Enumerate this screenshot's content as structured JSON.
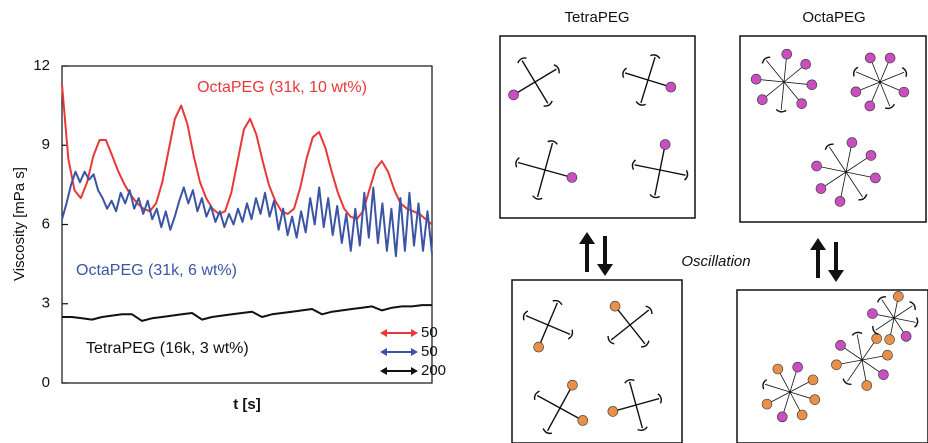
{
  "chart_data": {
    "type": "line",
    "ylabel": "Viscosity [mPa s]",
    "xlabel": "t [s]",
    "ylim": [
      0,
      12
    ],
    "yticks": [
      0,
      3,
      6,
      9,
      12
    ],
    "series": [
      {
        "name": "OctaPEG (31k, 10 wt%)",
        "color": "#e8383a",
        "values": [
          11.3,
          8.5,
          7.3,
          7.0,
          7.6,
          8.6,
          9.2,
          9.2,
          8.6,
          8.0,
          7.5,
          7.1,
          6.8,
          6.6,
          6.5,
          6.8,
          7.6,
          8.8,
          10.0,
          10.5,
          9.8,
          8.6,
          7.6,
          7.0,
          6.6,
          6.4,
          6.5,
          7.2,
          8.4,
          9.6,
          10.0,
          9.4,
          8.4,
          7.5,
          6.9,
          6.5,
          6.4,
          6.6,
          7.4,
          8.5,
          9.3,
          9.5,
          8.9,
          8.0,
          7.2,
          6.6,
          6.3,
          6.2,
          6.5,
          7.3,
          8.1,
          8.4,
          8.0,
          7.3,
          6.8,
          6.6,
          6.5,
          6.4,
          6.2,
          6.0
        ]
      },
      {
        "name": "OctaPEG (31k, 6 wt%)",
        "color": "#3b55a4",
        "values": [
          6.2,
          6.8,
          7.5,
          8.0,
          7.6,
          8.0,
          7.7,
          7.9,
          7.3,
          7.0,
          6.6,
          6.9,
          6.5,
          7.2,
          6.8,
          7.3,
          6.6,
          7.0,
          6.4,
          6.9,
          6.2,
          6.6,
          5.9,
          6.5,
          5.8,
          6.3,
          6.9,
          7.4,
          6.8,
          7.3,
          6.5,
          7.0,
          6.3,
          6.7,
          6.1,
          6.5,
          5.9,
          6.4,
          6.0,
          6.6,
          6.1,
          6.8,
          6.2,
          7.0,
          6.4,
          7.2,
          6.3,
          6.9,
          5.8,
          6.6,
          5.6,
          6.3,
          5.5,
          6.5,
          5.7,
          7.0,
          6.0,
          7.4,
          5.9,
          7.0,
          5.6,
          6.7,
          5.3,
          6.4,
          5.0,
          6.6,
          5.2,
          7.2,
          5.5,
          7.4,
          5.3,
          6.8,
          5.0,
          6.6,
          4.8,
          7.0,
          5.0,
          7.2,
          5.2,
          6.8,
          5.0,
          6.5,
          4.9
        ]
      },
      {
        "name": "TetraPEG (16k, 3 wt%)",
        "color": "#111111",
        "values": [
          2.5,
          2.5,
          2.45,
          2.4,
          2.5,
          2.55,
          2.6,
          2.6,
          2.35,
          2.45,
          2.5,
          2.55,
          2.6,
          2.65,
          2.4,
          2.5,
          2.55,
          2.6,
          2.65,
          2.7,
          2.5,
          2.6,
          2.65,
          2.7,
          2.75,
          2.8,
          2.6,
          2.7,
          2.75,
          2.8,
          2.85,
          2.9,
          2.75,
          2.85,
          2.9,
          2.9,
          2.95,
          2.95
        ]
      }
    ],
    "scale_bars": [
      {
        "color": "#e8383a",
        "value": 50
      },
      {
        "color": "#3b55a4",
        "value": 50
      },
      {
        "color": "#111111",
        "value": 200
      }
    ]
  },
  "diagram": {
    "labels": [
      "TetraPEG",
      "OctaPEG",
      "Oscillation"
    ]
  }
}
